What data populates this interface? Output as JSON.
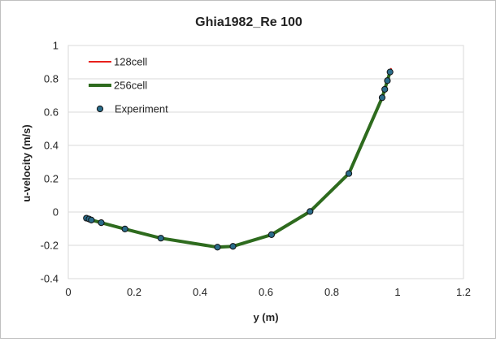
{
  "chart_data": {
    "type": "line",
    "title": "Ghia1982_Re 100",
    "xlabel": "y (m)",
    "ylabel": "u-velocity (m/s)",
    "xlim": [
      0,
      1.2
    ],
    "ylim": [
      -0.4,
      1
    ],
    "xticks": [
      0,
      0.2,
      0.4,
      0.6,
      0.8,
      1,
      1.2
    ],
    "yticks": [
      -0.4,
      -0.2,
      0,
      0.2,
      0.4,
      0.6,
      0.8,
      1
    ],
    "xtick_labels": [
      "0",
      "0.2",
      "0.4",
      "0.6",
      "0.8",
      "1",
      "1.2"
    ],
    "ytick_labels": [
      "-0.4",
      "-0.2",
      "0",
      "0.2",
      "0.4",
      "0.6",
      "0.8",
      "1"
    ],
    "grid": "horizontal",
    "legend_position": "top-left",
    "series": [
      {
        "name": "128cell",
        "kind": "line",
        "color": "#e8201c",
        "x": [
          0.055,
          0.063,
          0.07,
          0.1,
          0.172,
          0.281,
          0.453,
          0.5,
          0.617,
          0.734,
          0.852,
          0.953,
          0.961,
          0.969,
          0.977,
          0.98
        ],
        "y": [
          -0.037,
          -0.042,
          -0.048,
          -0.064,
          -0.102,
          -0.157,
          -0.211,
          -0.206,
          -0.136,
          0.003,
          0.231,
          0.687,
          0.737,
          0.789,
          0.841,
          0.86
        ]
      },
      {
        "name": "256cell",
        "kind": "line",
        "color": "#2e6b1e",
        "x": [
          0.055,
          0.063,
          0.07,
          0.1,
          0.172,
          0.281,
          0.453,
          0.5,
          0.617,
          0.734,
          0.852,
          0.953,
          0.961,
          0.969,
          0.977
        ],
        "y": [
          -0.037,
          -0.042,
          -0.048,
          -0.064,
          -0.102,
          -0.157,
          -0.211,
          -0.206,
          -0.136,
          0.003,
          0.231,
          0.687,
          0.737,
          0.789,
          0.841
        ]
      },
      {
        "name": "Experiment",
        "kind": "scatter",
        "color": "#2a6c8a",
        "x": [
          0.055,
          0.063,
          0.07,
          0.1,
          0.172,
          0.281,
          0.453,
          0.5,
          0.617,
          0.734,
          0.852,
          0.953,
          0.961,
          0.969,
          0.977
        ],
        "y": [
          -0.037,
          -0.042,
          -0.048,
          -0.064,
          -0.102,
          -0.157,
          -0.211,
          -0.206,
          -0.136,
          0.003,
          0.231,
          0.687,
          0.737,
          0.789,
          0.841
        ]
      }
    ]
  }
}
